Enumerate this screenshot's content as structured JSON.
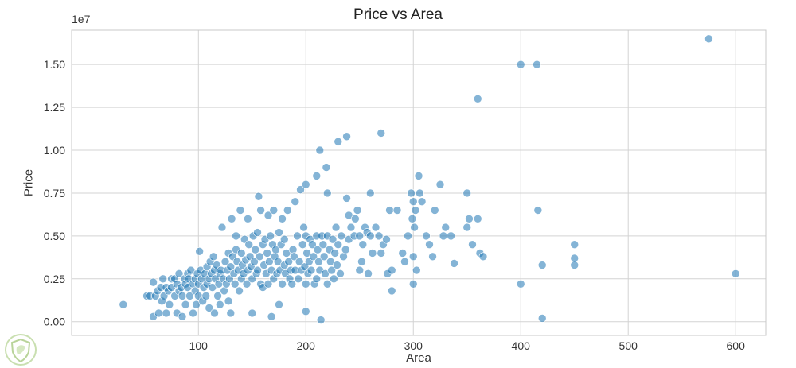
{
  "chart_data": {
    "type": "scatter",
    "title": "Price vs Area",
    "xlabel": "Area",
    "ylabel": "Price",
    "y_offset_label": "1e7",
    "xlim": [
      -18,
      628
    ],
    "ylim": [
      -0.08,
      1.7
    ],
    "x_ticks": [
      100,
      200,
      300,
      400,
      500,
      600
    ],
    "x_tick_labels": [
      "100",
      "200",
      "300",
      "400",
      "500",
      "600"
    ],
    "y_ticks": [
      0,
      0.25,
      0.5,
      0.75,
      1.0,
      1.25,
      1.5
    ],
    "y_tick_labels": [
      "0.00",
      "0.25",
      "0.50",
      "0.75",
      "1.00",
      "1.25",
      "1.50"
    ],
    "grid": true,
    "point_color": "#1f77b4",
    "point_alpha": 0.55,
    "points": [
      [
        30,
        0.1
      ],
      [
        52,
        0.15
      ],
      [
        55,
        0.15
      ],
      [
        58,
        0.23
      ],
      [
        58,
        0.03
      ],
      [
        60,
        0.15
      ],
      [
        62,
        0.18
      ],
      [
        63,
        0.05
      ],
      [
        65,
        0.2
      ],
      [
        66,
        0.12
      ],
      [
        67,
        0.25
      ],
      [
        68,
        0.15
      ],
      [
        70,
        0.2
      ],
      [
        70,
        0.05
      ],
      [
        72,
        0.18
      ],
      [
        73,
        0.1
      ],
      [
        75,
        0.25
      ],
      [
        75,
        0.2
      ],
      [
        78,
        0.15
      ],
      [
        78,
        0.25
      ],
      [
        80,
        0.22
      ],
      [
        80,
        0.05
      ],
      [
        82,
        0.18
      ],
      [
        82,
        0.28
      ],
      [
        84,
        0.2
      ],
      [
        85,
        0.15
      ],
      [
        85,
        0.03
      ],
      [
        87,
        0.25
      ],
      [
        88,
        0.22
      ],
      [
        88,
        0.1
      ],
      [
        90,
        0.2
      ],
      [
        90,
        0.28
      ],
      [
        91,
        0.25
      ],
      [
        92,
        0.15
      ],
      [
        93,
        0.3
      ],
      [
        95,
        0.22
      ],
      [
        95,
        0.05
      ],
      [
        97,
        0.25
      ],
      [
        97,
        0.18
      ],
      [
        98,
        0.1
      ],
      [
        99,
        0.28
      ],
      [
        100,
        0.22
      ],
      [
        100,
        0.15
      ],
      [
        101,
        0.41
      ],
      [
        102,
        0.3
      ],
      [
        103,
        0.25
      ],
      [
        104,
        0.12
      ],
      [
        105,
        0.2
      ],
      [
        106,
        0.28
      ],
      [
        107,
        0.15
      ],
      [
        108,
        0.32
      ],
      [
        108,
        0.22
      ],
      [
        110,
        0.25
      ],
      [
        110,
        0.08
      ],
      [
        111,
        0.35
      ],
      [
        112,
        0.28
      ],
      [
        113,
        0.2
      ],
      [
        114,
        0.38
      ],
      [
        115,
        0.3
      ],
      [
        115,
        0.05
      ],
      [
        116,
        0.25
      ],
      [
        117,
        0.33
      ],
      [
        118,
        0.15
      ],
      [
        119,
        0.22
      ],
      [
        120,
        0.28
      ],
      [
        120,
        0.1
      ],
      [
        121,
        0.3
      ],
      [
        122,
        0.55
      ],
      [
        123,
        0.25
      ],
      [
        124,
        0.18
      ],
      [
        125,
        0.35
      ],
      [
        126,
        0.22
      ],
      [
        127,
        0.3
      ],
      [
        128,
        0.12
      ],
      [
        128,
        0.4
      ],
      [
        129,
        0.25
      ],
      [
        130,
        0.32
      ],
      [
        130,
        0.05
      ],
      [
        131,
        0.6
      ],
      [
        132,
        0.38
      ],
      [
        133,
        0.28
      ],
      [
        134,
        0.22
      ],
      [
        135,
        0.42
      ],
      [
        135,
        0.5
      ],
      [
        136,
        0.35
      ],
      [
        137,
        0.3
      ],
      [
        138,
        0.18
      ],
      [
        139,
        0.65
      ],
      [
        140,
        0.4
      ],
      [
        140,
        0.25
      ],
      [
        141,
        0.33
      ],
      [
        142,
        0.28
      ],
      [
        143,
        0.48
      ],
      [
        144,
        0.36
      ],
      [
        145,
        0.22
      ],
      [
        146,
        0.6
      ],
      [
        146,
        0.3
      ],
      [
        147,
        0.45
      ],
      [
        148,
        0.38
      ],
      [
        149,
        0.32
      ],
      [
        150,
        0.25
      ],
      [
        150,
        0.05
      ],
      [
        151,
        0.5
      ],
      [
        152,
        0.35
      ],
      [
        153,
        0.42
      ],
      [
        154,
        0.28
      ],
      [
        155,
        0.52
      ],
      [
        155,
        0.3
      ],
      [
        156,
        0.73
      ],
      [
        157,
        0.38
      ],
      [
        158,
        0.22
      ],
      [
        158,
        0.65
      ],
      [
        160,
        0.45
      ],
      [
        160,
        0.2
      ],
      [
        161,
        0.33
      ],
      [
        162,
        0.48
      ],
      [
        163,
        0.28
      ],
      [
        164,
        0.4
      ],
      [
        165,
        0.22
      ],
      [
        165,
        0.62
      ],
      [
        166,
        0.35
      ],
      [
        167,
        0.5
      ],
      [
        168,
        0.3
      ],
      [
        168,
        0.03
      ],
      [
        169,
        0.45
      ],
      [
        170,
        0.25
      ],
      [
        170,
        0.65
      ],
      [
        171,
        0.38
      ],
      [
        172,
        0.42
      ],
      [
        173,
        0.28
      ],
      [
        174,
        0.35
      ],
      [
        175,
        0.52
      ],
      [
        175,
        0.1
      ],
      [
        176,
        0.3
      ],
      [
        177,
        0.45
      ],
      [
        178,
        0.22
      ],
      [
        178,
        0.6
      ],
      [
        180,
        0.33
      ],
      [
        180,
        0.48
      ],
      [
        181,
        0.28
      ],
      [
        182,
        0.4
      ],
      [
        183,
        0.65
      ],
      [
        184,
        0.35
      ],
      [
        185,
        0.25
      ],
      [
        186,
        0.3
      ],
      [
        187,
        0.22
      ],
      [
        188,
        0.42
      ],
      [
        189,
        0.38
      ],
      [
        190,
        0.3
      ],
      [
        190,
        0.7
      ],
      [
        192,
        0.5
      ],
      [
        193,
        0.25
      ],
      [
        194,
        0.35
      ],
      [
        195,
        0.77
      ],
      [
        196,
        0.3
      ],
      [
        197,
        0.45
      ],
      [
        198,
        0.55
      ],
      [
        199,
        0.32
      ],
      [
        200,
        0.8
      ],
      [
        200,
        0.5
      ],
      [
        200,
        0.22
      ],
      [
        200,
        0.06
      ],
      [
        201,
        0.4
      ],
      [
        202,
        0.28
      ],
      [
        203,
        0.35
      ],
      [
        204,
        0.48
      ],
      [
        205,
        0.3
      ],
      [
        206,
        0.45
      ],
      [
        207,
        0.38
      ],
      [
        208,
        0.22
      ],
      [
        210,
        0.85
      ],
      [
        210,
        0.5
      ],
      [
        210,
        0.25
      ],
      [
        211,
        0.42
      ],
      [
        212,
        0.35
      ],
      [
        213,
        1.0
      ],
      [
        213,
        0.3
      ],
      [
        214,
        0.01
      ],
      [
        215,
        0.5
      ],
      [
        216,
        0.45
      ],
      [
        217,
        0.38
      ],
      [
        218,
        0.28
      ],
      [
        219,
        0.9
      ],
      [
        220,
        0.75
      ],
      [
        220,
        0.5
      ],
      [
        220,
        0.22
      ],
      [
        222,
        0.42
      ],
      [
        223,
        0.35
      ],
      [
        224,
        0.3
      ],
      [
        225,
        0.48
      ],
      [
        226,
        0.25
      ],
      [
        227,
        0.4
      ],
      [
        228,
        0.55
      ],
      [
        229,
        0.33
      ],
      [
        230,
        1.05
      ],
      [
        230,
        0.45
      ],
      [
        232,
        0.28
      ],
      [
        233,
        0.5
      ],
      [
        235,
        0.38
      ],
      [
        237,
        0.42
      ],
      [
        238,
        1.08
      ],
      [
        238,
        0.72
      ],
      [
        240,
        0.48
      ],
      [
        240,
        0.62
      ],
      [
        242,
        0.55
      ],
      [
        245,
        0.5
      ],
      [
        246,
        0.6
      ],
      [
        248,
        0.65
      ],
      [
        250,
        0.3
      ],
      [
        250,
        0.5
      ],
      [
        252,
        0.35
      ],
      [
        253,
        0.45
      ],
      [
        255,
        0.55
      ],
      [
        257,
        0.52
      ],
      [
        258,
        0.28
      ],
      [
        260,
        0.75
      ],
      [
        260,
        0.5
      ],
      [
        262,
        0.4
      ],
      [
        265,
        0.55
      ],
      [
        268,
        0.5
      ],
      [
        270,
        1.1
      ],
      [
        270,
        0.4
      ],
      [
        272,
        0.45
      ],
      [
        275,
        0.48
      ],
      [
        276,
        0.28
      ],
      [
        278,
        0.65
      ],
      [
        280,
        0.3
      ],
      [
        280,
        0.18
      ],
      [
        285,
        0.65
      ],
      [
        290,
        0.4
      ],
      [
        292,
        0.35
      ],
      [
        295,
        0.5
      ],
      [
        298,
        0.75
      ],
      [
        299,
        0.6
      ],
      [
        300,
        0.38
      ],
      [
        300,
        0.7
      ],
      [
        300,
        0.22
      ],
      [
        301,
        0.55
      ],
      [
        302,
        0.65
      ],
      [
        303,
        0.3
      ],
      [
        305,
        0.85
      ],
      [
        306,
        0.75
      ],
      [
        308,
        0.7
      ],
      [
        312,
        0.5
      ],
      [
        315,
        0.45
      ],
      [
        318,
        0.38
      ],
      [
        320,
        0.65
      ],
      [
        325,
        0.8
      ],
      [
        328,
        0.5
      ],
      [
        330,
        0.55
      ],
      [
        335,
        0.5
      ],
      [
        338,
        0.34
      ],
      [
        350,
        0.75
      ],
      [
        350,
        0.55
      ],
      [
        352,
        0.6
      ],
      [
        355,
        0.45
      ],
      [
        360,
        1.3
      ],
      [
        360,
        0.6
      ],
      [
        362,
        0.4
      ],
      [
        365,
        0.38
      ],
      [
        400,
        1.5
      ],
      [
        400,
        0.22
      ],
      [
        415,
        1.5
      ],
      [
        416,
        0.65
      ],
      [
        420,
        0.02
      ],
      [
        420,
        0.33
      ],
      [
        450,
        0.45
      ],
      [
        450,
        0.37
      ],
      [
        450,
        0.33
      ],
      [
        575,
        1.65
      ],
      [
        600,
        0.28
      ]
    ]
  },
  "watermark": {
    "logo_name": "leaf-shield-logo"
  }
}
